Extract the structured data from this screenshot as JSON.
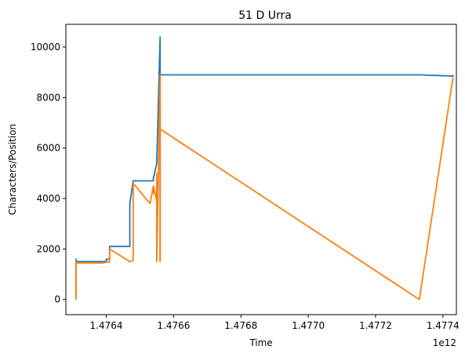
{
  "chart_data": {
    "type": "line",
    "title": "51 D Urra",
    "xlabel": "Time",
    "ylabel": "Characters/Position",
    "x_offset_label": "1e12",
    "xlim": [
      1.47628,
      1.47744
    ],
    "ylim": [
      -600,
      10900
    ],
    "x_ticks": [
      1.4764,
      1.4766,
      1.4768,
      1.477,
      1.4772,
      1.4774
    ],
    "x_tick_labels": [
      "1.4764",
      "1.4766",
      "1.4768",
      "1.4770",
      "1.4772",
      "1.4774"
    ],
    "y_ticks": [
      0,
      2000,
      4000,
      6000,
      8000,
      10000
    ],
    "y_tick_labels": [
      "0",
      "2000",
      "4000",
      "6000",
      "8000",
      "10000"
    ],
    "grid": false,
    "legend": false,
    "colors": {
      "series1": "#1f77b4",
      "series2": "#ff7f0e"
    },
    "series": [
      {
        "color": "#1f77b4",
        "x": [
          1.47631,
          1.47631,
          1.47631,
          1.47631,
          1.4764,
          1.4764,
          1.47641,
          1.47641,
          1.47647,
          1.47647,
          1.47648,
          1.47648,
          1.47654,
          1.47654,
          1.47655,
          1.47655,
          1.47656,
          1.47656,
          1.47656,
          1.47656,
          1.47656,
          1.47657,
          1.47733,
          1.47743,
          1.47743
        ],
        "y": [
          0,
          1600,
          1500,
          1500,
          1500,
          1600,
          1600,
          2100,
          2100,
          3800,
          4700,
          4700,
          4700,
          4800,
          5400,
          5400,
          10400,
          1600,
          10400,
          8700,
          8900,
          8900,
          8900,
          8850,
          8900
        ]
      },
      {
        "color": "#ff7f0e",
        "x": [
          1.47631,
          1.47631,
          1.47631,
          1.47639,
          1.47641,
          1.47641,
          1.47647,
          1.47648,
          1.47648,
          1.47653,
          1.47654,
          1.47654,
          1.47654,
          1.47655,
          1.47655,
          1.47655,
          1.47656,
          1.47656,
          1.47656,
          1.47656,
          1.47656,
          1.47656,
          1.47733,
          1.47743
        ],
        "y": [
          0,
          1500,
          1450,
          1450,
          1500,
          2000,
          1500,
          1550,
          4600,
          3800,
          4500,
          4200,
          4500,
          3900,
          5000,
          1500,
          8900,
          1500,
          8800,
          6700,
          6800,
          6750,
          0,
          8800
        ]
      }
    ]
  }
}
